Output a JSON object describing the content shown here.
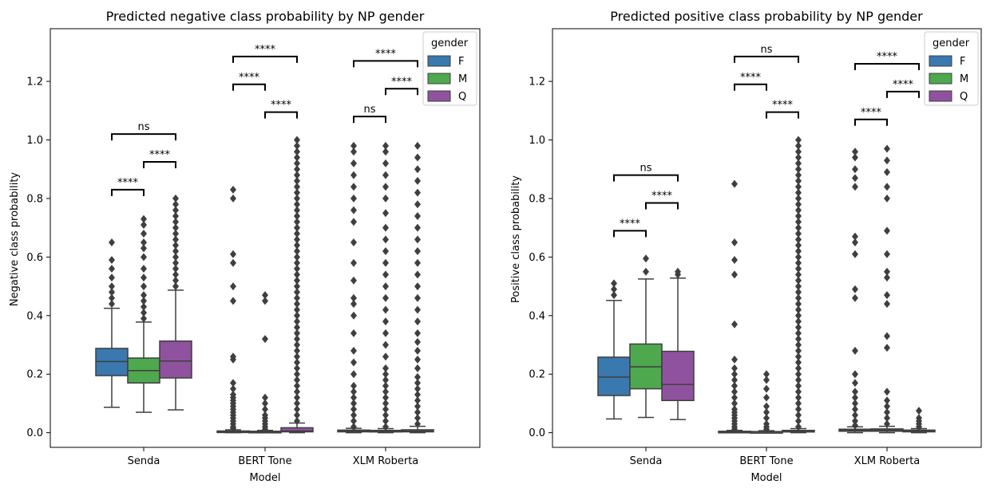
{
  "chart_data": [
    {
      "type": "box",
      "title": "Predicted negative class probability by NP gender",
      "xlabel": "Model",
      "ylabel": "Negative class probability",
      "ylim": [
        -0.05,
        1.38
      ],
      "yticks": [
        "0.0",
        "0.2",
        "0.4",
        "0.6",
        "0.8",
        "1.0",
        "1.2"
      ],
      "categories": [
        "Senda",
        "BERT Tone",
        "XLM Roberta"
      ],
      "hue_title": "gender",
      "legend_position": "top-right",
      "hue": [
        {
          "name": "F",
          "color": "#3a78b0"
        },
        {
          "name": "M",
          "color": "#4ea84e"
        },
        {
          "name": "Q",
          "color": "#8f529e"
        }
      ],
      "boxes": [
        {
          "category": "Senda",
          "hue": "F",
          "whislo": 0.087,
          "q1": 0.195,
          "median": 0.243,
          "q3": 0.288,
          "whishi": 0.425,
          "outliers": [
            0.44,
            0.46,
            0.48,
            0.5,
            0.53,
            0.56,
            0.59,
            0.65
          ]
        },
        {
          "category": "Senda",
          "hue": "M",
          "whislo": 0.07,
          "q1": 0.17,
          "median": 0.212,
          "q3": 0.255,
          "whishi": 0.378,
          "outliers": [
            0.39,
            0.41,
            0.43,
            0.45,
            0.47,
            0.5,
            0.53,
            0.56,
            0.6,
            0.63,
            0.65,
            0.68,
            0.71,
            0.73
          ]
        },
        {
          "category": "Senda",
          "hue": "Q",
          "whislo": 0.078,
          "q1": 0.187,
          "median": 0.245,
          "q3": 0.313,
          "whishi": 0.487,
          "outliers": [
            0.5,
            0.52,
            0.54,
            0.56,
            0.58,
            0.6,
            0.62,
            0.64,
            0.66,
            0.68,
            0.7,
            0.72,
            0.74,
            0.76,
            0.78,
            0.8
          ]
        },
        {
          "category": "BERT Tone",
          "hue": "F",
          "whislo": 0.0,
          "q1": 0.002,
          "median": 0.004,
          "q3": 0.006,
          "whishi": 0.01,
          "outliers": [
            0.015,
            0.02,
            0.03,
            0.04,
            0.05,
            0.06,
            0.07,
            0.08,
            0.09,
            0.1,
            0.11,
            0.12,
            0.13,
            0.15,
            0.17,
            0.25,
            0.26,
            0.45,
            0.5,
            0.58,
            0.61,
            0.8,
            0.83
          ]
        },
        {
          "category": "BERT Tone",
          "hue": "M",
          "whislo": 0.0,
          "q1": 0.002,
          "median": 0.003,
          "q3": 0.005,
          "whishi": 0.008,
          "outliers": [
            0.012,
            0.02,
            0.03,
            0.04,
            0.05,
            0.06,
            0.08,
            0.1,
            0.12,
            0.32,
            0.45,
            0.47
          ]
        },
        {
          "category": "BERT Tone",
          "hue": "Q",
          "whislo": 0.0,
          "q1": 0.003,
          "median": 0.006,
          "q3": 0.017,
          "whishi": 0.033,
          "outliers": [
            0.04,
            0.06,
            0.08,
            0.1,
            0.12,
            0.14,
            0.16,
            0.18,
            0.2,
            0.22,
            0.24,
            0.26,
            0.28,
            0.3,
            0.32,
            0.34,
            0.36,
            0.38,
            0.4,
            0.42,
            0.44,
            0.46,
            0.48,
            0.5,
            0.52,
            0.54,
            0.56,
            0.58,
            0.6,
            0.62,
            0.64,
            0.66,
            0.68,
            0.7,
            0.72,
            0.74,
            0.76,
            0.78,
            0.8,
            0.82,
            0.84,
            0.86,
            0.88,
            0.9,
            0.92,
            0.94,
            0.96,
            0.98,
            1.0
          ]
        },
        {
          "category": "XLM Roberta",
          "hue": "F",
          "whislo": 0.0,
          "q1": 0.003,
          "median": 0.006,
          "q3": 0.009,
          "whishi": 0.015,
          "outliers": [
            0.02,
            0.04,
            0.06,
            0.08,
            0.1,
            0.12,
            0.14,
            0.16,
            0.2,
            0.24,
            0.28,
            0.34,
            0.4,
            0.44,
            0.46,
            0.52,
            0.58,
            0.65,
            0.72,
            0.76,
            0.8,
            0.84,
            0.88,
            0.92,
            0.96,
            0.98
          ]
        },
        {
          "category": "XLM Roberta",
          "hue": "M",
          "whislo": 0.0,
          "q1": 0.003,
          "median": 0.005,
          "q3": 0.008,
          "whishi": 0.014,
          "outliers": [
            0.02,
            0.04,
            0.06,
            0.08,
            0.1,
            0.12,
            0.14,
            0.16,
            0.18,
            0.2,
            0.22,
            0.26,
            0.3,
            0.34,
            0.38,
            0.42,
            0.46,
            0.5,
            0.54,
            0.58,
            0.62,
            0.66,
            0.7,
            0.75,
            0.8,
            0.84,
            0.88,
            0.92,
            0.96,
            0.98
          ]
        },
        {
          "category": "XLM Roberta",
          "hue": "Q",
          "whislo": 0.0,
          "q1": 0.003,
          "median": 0.006,
          "q3": 0.01,
          "whishi": 0.022,
          "outliers": [
            0.03,
            0.05,
            0.07,
            0.09,
            0.11,
            0.13,
            0.15,
            0.17,
            0.19,
            0.22,
            0.25,
            0.28,
            0.31,
            0.34,
            0.38,
            0.42,
            0.46,
            0.5,
            0.54,
            0.58,
            0.62,
            0.66,
            0.7,
            0.74,
            0.78,
            0.82,
            0.86,
            0.9,
            0.94,
            0.98
          ]
        }
      ],
      "significance": [
        {
          "category": "Senda",
          "pair": [
            "F",
            "M"
          ],
          "label": "****",
          "y": 0.83
        },
        {
          "category": "Senda",
          "pair": [
            "M",
            "Q"
          ],
          "label": "****",
          "y": 0.925
        },
        {
          "category": "Senda",
          "pair": [
            "F",
            "Q"
          ],
          "label": "ns",
          "y": 1.02
        },
        {
          "category": "BERT Tone",
          "pair": [
            "M",
            "Q"
          ],
          "label": "****",
          "y": 1.095
        },
        {
          "category": "BERT Tone",
          "pair": [
            "F",
            "M"
          ],
          "label": "****",
          "y": 1.19
        },
        {
          "category": "BERT Tone",
          "pair": [
            "F",
            "Q"
          ],
          "label": "****",
          "y": 1.285
        },
        {
          "category": "XLM Roberta",
          "pair": [
            "F",
            "M"
          ],
          "label": "ns",
          "y": 1.08
        },
        {
          "category": "XLM Roberta",
          "pair": [
            "M",
            "Q"
          ],
          "label": "****",
          "y": 1.175
        },
        {
          "category": "XLM Roberta",
          "pair": [
            "F",
            "Q"
          ],
          "label": "****",
          "y": 1.27
        }
      ]
    },
    {
      "type": "box",
      "title": "Predicted positive class probability by NP gender",
      "xlabel": "Model",
      "ylabel": "Positive class probability",
      "ylim": [
        -0.05,
        1.38
      ],
      "yticks": [
        "0.0",
        "0.2",
        "0.4",
        "0.6",
        "0.8",
        "1.0",
        "1.2"
      ],
      "categories": [
        "Senda",
        "BERT Tone",
        "XLM Roberta"
      ],
      "hue_title": "gender",
      "legend_position": "top-right",
      "hue": [
        {
          "name": "F",
          "color": "#3a78b0"
        },
        {
          "name": "M",
          "color": "#4ea84e"
        },
        {
          "name": "Q",
          "color": "#8f529e"
        }
      ],
      "boxes": [
        {
          "category": "Senda",
          "hue": "F",
          "whislo": 0.047,
          "q1": 0.127,
          "median": 0.19,
          "q3": 0.258,
          "whishi": 0.452,
          "outliers": [
            0.47,
            0.49,
            0.51
          ]
        },
        {
          "category": "Senda",
          "hue": "M",
          "whislo": 0.052,
          "q1": 0.15,
          "median": 0.225,
          "q3": 0.303,
          "whishi": 0.525,
          "outliers": [
            0.55,
            0.595
          ]
        },
        {
          "category": "Senda",
          "hue": "Q",
          "whislo": 0.045,
          "q1": 0.11,
          "median": 0.165,
          "q3": 0.278,
          "whishi": 0.528,
          "outliers": [
            0.54,
            0.55
          ]
        },
        {
          "category": "BERT Tone",
          "hue": "F",
          "whislo": 0.0,
          "q1": 0.002,
          "median": 0.003,
          "q3": 0.005,
          "whishi": 0.008,
          "outliers": [
            0.012,
            0.02,
            0.03,
            0.04,
            0.05,
            0.06,
            0.07,
            0.08,
            0.1,
            0.12,
            0.14,
            0.16,
            0.18,
            0.2,
            0.22,
            0.25,
            0.37,
            0.54,
            0.59,
            0.65,
            0.85
          ]
        },
        {
          "category": "BERT Tone",
          "hue": "M",
          "whislo": 0.0,
          "q1": 0.001,
          "median": 0.003,
          "q3": 0.004,
          "whishi": 0.007,
          "outliers": [
            0.012,
            0.02,
            0.03,
            0.05,
            0.07,
            0.09,
            0.12,
            0.15,
            0.18,
            0.2
          ]
        },
        {
          "category": "BERT Tone",
          "hue": "Q",
          "whislo": 0.0,
          "q1": 0.003,
          "median": 0.005,
          "q3": 0.008,
          "whishi": 0.014,
          "outliers": [
            0.02,
            0.04,
            0.06,
            0.08,
            0.1,
            0.12,
            0.14,
            0.16,
            0.18,
            0.2,
            0.22,
            0.24,
            0.26,
            0.28,
            0.3,
            0.32,
            0.34,
            0.36,
            0.38,
            0.4,
            0.42,
            0.44,
            0.46,
            0.48,
            0.5,
            0.52,
            0.54,
            0.56,
            0.58,
            0.6,
            0.62,
            0.64,
            0.66,
            0.68,
            0.7,
            0.72,
            0.74,
            0.76,
            0.78,
            0.8,
            0.82,
            0.84,
            0.86,
            0.88,
            0.9,
            0.92,
            0.94,
            0.96,
            0.98,
            1.0
          ]
        },
        {
          "category": "XLM Roberta",
          "hue": "F",
          "whislo": 0.0,
          "q1": 0.005,
          "median": 0.008,
          "q3": 0.012,
          "whishi": 0.02,
          "outliers": [
            0.025,
            0.04,
            0.06,
            0.08,
            0.1,
            0.12,
            0.14,
            0.17,
            0.2,
            0.28,
            0.46,
            0.49,
            0.61,
            0.65,
            0.67,
            0.84,
            0.87,
            0.9,
            0.94,
            0.96
          ]
        },
        {
          "category": "XLM Roberta",
          "hue": "M",
          "whislo": 0.0,
          "q1": 0.005,
          "median": 0.009,
          "q3": 0.013,
          "whishi": 0.022,
          "outliers": [
            0.03,
            0.05,
            0.07,
            0.09,
            0.11,
            0.14,
            0.29,
            0.33,
            0.44,
            0.47,
            0.53,
            0.55,
            0.61,
            0.69,
            0.8,
            0.84,
            0.89,
            0.93,
            0.97
          ]
        },
        {
          "category": "XLM Roberta",
          "hue": "Q",
          "whislo": 0.0,
          "q1": 0.003,
          "median": 0.006,
          "q3": 0.009,
          "whishi": 0.014,
          "outliers": [
            0.02,
            0.03,
            0.04,
            0.05,
            0.075
          ]
        }
      ],
      "significance": [
        {
          "category": "Senda",
          "pair": [
            "F",
            "M"
          ],
          "label": "****",
          "y": 0.69
        },
        {
          "category": "Senda",
          "pair": [
            "M",
            "Q"
          ],
          "label": "****",
          "y": 0.785
        },
        {
          "category": "Senda",
          "pair": [
            "F",
            "Q"
          ],
          "label": "ns",
          "y": 0.88
        },
        {
          "category": "BERT Tone",
          "pair": [
            "M",
            "Q"
          ],
          "label": "****",
          "y": 1.095
        },
        {
          "category": "BERT Tone",
          "pair": [
            "F",
            "M"
          ],
          "label": "****",
          "y": 1.19
        },
        {
          "category": "BERT Tone",
          "pair": [
            "F",
            "Q"
          ],
          "label": "ns",
          "y": 1.285
        },
        {
          "category": "XLM Roberta",
          "pair": [
            "F",
            "M"
          ],
          "label": "****",
          "y": 1.07
        },
        {
          "category": "XLM Roberta",
          "pair": [
            "M",
            "Q"
          ],
          "label": "****",
          "y": 1.165
        },
        {
          "category": "XLM Roberta",
          "pair": [
            "F",
            "Q"
          ],
          "label": "****",
          "y": 1.26
        }
      ]
    }
  ]
}
